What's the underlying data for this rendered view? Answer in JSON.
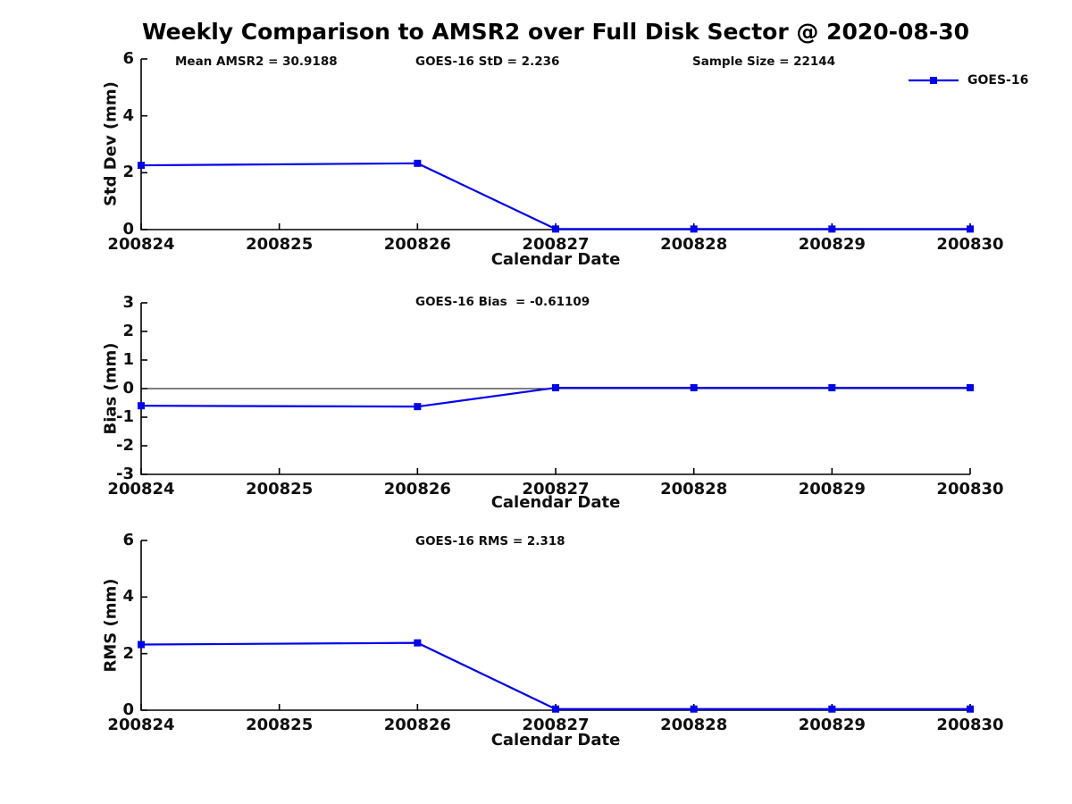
{
  "title": "Weekly Comparison to AMSR2 over Full Disk Sector @ 2020-08-30",
  "legend": {
    "label": "GOES-16",
    "color": "#0000EE"
  },
  "chart_data": [
    {
      "type": "line",
      "ylabel": "Std Dev (mm)",
      "xlabel": "Calendar Date",
      "ylim": [
        0,
        6
      ],
      "yticks": [
        0,
        2,
        4,
        6
      ],
      "xlim": [
        200824,
        200830
      ],
      "xticks": [
        200824,
        200825,
        200826,
        200827,
        200828,
        200829,
        200830
      ],
      "annotations": [
        "Mean AMSR2 = 30.9188",
        "GOES-16 StD = 2.236",
        "Sample Size = 22144"
      ],
      "legend_position": "upper right",
      "grid": false,
      "zero_line": false,
      "series": [
        {
          "name": "GOES-16",
          "color": "#0000EE",
          "x": [
            200824,
            200826,
            200827,
            200828,
            200829,
            200830
          ],
          "values": [
            2.26,
            2.33,
            0.02,
            0.02,
            0.02,
            0.02
          ]
        }
      ]
    },
    {
      "type": "line",
      "ylabel": "Bias (mm)",
      "xlabel": "Calendar Date",
      "ylim": [
        -3,
        3
      ],
      "yticks": [
        -3,
        -2,
        -1,
        0,
        1,
        2,
        3
      ],
      "xlim": [
        200824,
        200830
      ],
      "xticks": [
        200824,
        200825,
        200826,
        200827,
        200828,
        200829,
        200830
      ],
      "annotations": [
        "GOES-16 Bias  = -0.61109"
      ],
      "grid": false,
      "zero_line": true,
      "series": [
        {
          "name": "GOES-16",
          "color": "#0000EE",
          "x": [
            200824,
            200826,
            200827,
            200828,
            200829,
            200830
          ],
          "values": [
            -0.6,
            -0.63,
            0.03,
            0.03,
            0.03,
            0.03
          ]
        }
      ]
    },
    {
      "type": "line",
      "ylabel": "RMS (mm)",
      "xlabel": "Calendar Date",
      "ylim": [
        0,
        6
      ],
      "yticks": [
        0,
        2,
        4,
        6
      ],
      "xlim": [
        200824,
        200830
      ],
      "xticks": [
        200824,
        200825,
        200826,
        200827,
        200828,
        200829,
        200830
      ],
      "annotations": [
        "GOES-16 RMS = 2.318"
      ],
      "grid": false,
      "zero_line": false,
      "series": [
        {
          "name": "GOES-16",
          "color": "#0000EE",
          "x": [
            200824,
            200826,
            200827,
            200828,
            200829,
            200830
          ],
          "values": [
            2.32,
            2.38,
            0.04,
            0.04,
            0.04,
            0.04
          ]
        }
      ]
    }
  ]
}
